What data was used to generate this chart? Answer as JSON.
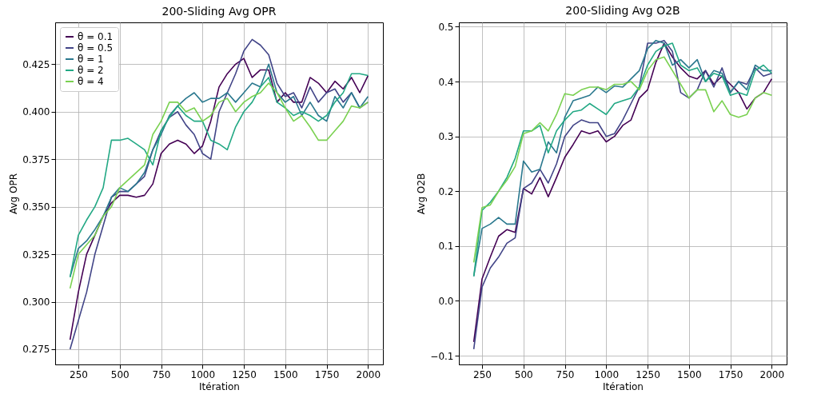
{
  "chart_data": [
    {
      "type": "line",
      "title": "200-Sliding Avg OPR",
      "xlabel": "Itération",
      "ylabel": "Avg OPR",
      "grid": true,
      "legend": "top left",
      "xlim": [
        110,
        2090
      ],
      "ylim": [
        0.267,
        0.447
      ],
      "xticks": [
        250,
        500,
        750,
        1000,
        1250,
        1500,
        1750,
        2000
      ],
      "yticks": [
        0.275,
        {
          "value": 0.3,
          "label": "0.300"
        },
        0.325,
        {
          "value": 0.35,
          "label": "0.350"
        },
        0.375,
        {
          "value": 0.4,
          "label": "0.400"
        },
        0.425
      ],
      "x": [
        200,
        250,
        300,
        350,
        400,
        450,
        500,
        550,
        600,
        650,
        700,
        750,
        800,
        850,
        900,
        950,
        1000,
        1050,
        1100,
        1150,
        1200,
        1250,
        1300,
        1350,
        1400,
        1450,
        1500,
        1550,
        1600,
        1650,
        1700,
        1750,
        1800,
        1850,
        1900,
        1950,
        2000
      ],
      "series": [
        {
          "name": "θ = 0.1",
          "color": "#440154",
          "values": [
            0.28,
            0.305,
            0.325,
            0.335,
            0.345,
            0.352,
            0.356,
            0.356,
            0.355,
            0.356,
            0.362,
            0.378,
            0.383,
            0.385,
            0.383,
            0.378,
            0.382,
            0.395,
            0.413,
            0.42,
            0.425,
            0.428,
            0.418,
            0.422,
            0.422,
            0.405,
            0.41,
            0.405,
            0.405,
            0.418,
            0.415,
            0.41,
            0.416,
            0.412,
            0.418,
            0.41,
            0.419
          ]
        },
        {
          "name": "θ = 0.5",
          "color": "#414487",
          "values": [
            0.275,
            0.29,
            0.305,
            0.325,
            0.34,
            0.355,
            0.358,
            0.358,
            0.362,
            0.366,
            0.38,
            0.39,
            0.397,
            0.4,
            0.393,
            0.388,
            0.378,
            0.375,
            0.4,
            0.41,
            0.42,
            0.432,
            0.438,
            0.435,
            0.43,
            0.415,
            0.408,
            0.41,
            0.402,
            0.413,
            0.405,
            0.41,
            0.412,
            0.405,
            0.41,
            0.402,
            0.405
          ]
        },
        {
          "name": "θ = 1",
          "color": "#2a788e",
          "values": [
            0.313,
            0.328,
            0.332,
            0.338,
            0.345,
            0.355,
            0.36,
            0.358,
            0.362,
            0.368,
            0.38,
            0.388,
            0.398,
            0.403,
            0.407,
            0.41,
            0.405,
            0.407,
            0.407,
            0.41,
            0.405,
            0.41,
            0.415,
            0.413,
            0.425,
            0.41,
            0.405,
            0.408,
            0.398,
            0.405,
            0.398,
            0.395,
            0.408,
            0.402,
            0.41,
            0.402,
            0.408
          ]
        },
        {
          "name": "θ = 2",
          "color": "#22a884",
          "values": [
            0.313,
            0.335,
            0.343,
            0.35,
            0.36,
            0.385,
            0.385,
            0.386,
            0.383,
            0.38,
            0.372,
            0.39,
            0.397,
            0.403,
            0.398,
            0.395,
            0.395,
            0.385,
            0.383,
            0.38,
            0.392,
            0.4,
            0.405,
            0.413,
            0.418,
            0.405,
            0.402,
            0.398,
            0.4,
            0.398,
            0.395,
            0.398,
            0.405,
            0.41,
            0.42,
            0.42,
            0.419
          ]
        },
        {
          "name": "θ = 4",
          "color": "#7ad151",
          "values": [
            0.307,
            0.325,
            0.33,
            0.335,
            0.345,
            0.35,
            0.36,
            0.364,
            0.368,
            0.372,
            0.388,
            0.395,
            0.405,
            0.405,
            0.4,
            0.402,
            0.395,
            0.398,
            0.405,
            0.407,
            0.4,
            0.405,
            0.408,
            0.41,
            0.415,
            0.41,
            0.402,
            0.395,
            0.398,
            0.392,
            0.385,
            0.385,
            0.39,
            0.395,
            0.403,
            0.402,
            0.405
          ]
        }
      ]
    },
    {
      "type": "line",
      "title": "200-Sliding Avg O2B",
      "xlabel": "Itération",
      "ylabel": "Avg O2B",
      "grid": true,
      "legend": "top left",
      "xlim": [
        110,
        2090
      ],
      "ylim": [
        -0.116,
        0.508
      ],
      "xticks": [
        250,
        500,
        750,
        1000,
        1250,
        1500,
        1750,
        2000
      ],
      "yticks": [
        {
          "value": -0.1,
          "label": "−0.1"
        },
        {
          "value": 0,
          "label": "0.0"
        },
        0.1,
        0.2,
        0.3,
        0.4,
        0.5
      ],
      "x": [
        200,
        250,
        300,
        350,
        400,
        450,
        500,
        550,
        600,
        650,
        700,
        750,
        800,
        850,
        900,
        950,
        1000,
        1050,
        1100,
        1150,
        1200,
        1250,
        1300,
        1350,
        1400,
        1450,
        1500,
        1550,
        1600,
        1650,
        1700,
        1750,
        1800,
        1850,
        1900,
        1950,
        2000
      ],
      "series": [
        {
          "name": "θ = 0.1",
          "color": "#440154",
          "values": [
            -0.075,
            0.04,
            0.08,
            0.118,
            0.13,
            0.125,
            0.205,
            0.195,
            0.225,
            0.19,
            0.225,
            0.262,
            0.285,
            0.31,
            0.305,
            0.31,
            0.29,
            0.3,
            0.32,
            0.33,
            0.37,
            0.385,
            0.435,
            0.47,
            0.445,
            0.425,
            0.41,
            0.405,
            0.42,
            0.395,
            0.41,
            0.395,
            0.38,
            0.35,
            0.37,
            0.38,
            0.405
          ]
        },
        {
          "name": "θ = 0.5",
          "color": "#414487",
          "values": [
            -0.088,
            0.025,
            0.06,
            0.08,
            0.105,
            0.115,
            0.205,
            0.215,
            0.24,
            0.215,
            0.25,
            0.3,
            0.32,
            0.33,
            0.325,
            0.325,
            0.3,
            0.305,
            0.33,
            0.36,
            0.39,
            0.47,
            0.47,
            0.475,
            0.455,
            0.38,
            0.37,
            0.385,
            0.42,
            0.39,
            0.425,
            0.38,
            0.4,
            0.395,
            0.425,
            0.41,
            0.415
          ]
        },
        {
          "name": "θ = 1",
          "color": "#2a788e",
          "values": [
            0.045,
            0.132,
            0.14,
            0.152,
            0.14,
            0.14,
            0.255,
            0.235,
            0.24,
            0.29,
            0.27,
            0.335,
            0.365,
            0.37,
            0.375,
            0.39,
            0.38,
            0.392,
            0.39,
            0.405,
            0.42,
            0.46,
            0.475,
            0.47,
            0.43,
            0.44,
            0.425,
            0.44,
            0.4,
            0.42,
            0.415,
            0.38,
            0.4,
            0.385,
            0.43,
            0.42,
            0.42
          ]
        },
        {
          "name": "θ = 2",
          "color": "#22a884",
          "values": [
            0.045,
            0.165,
            0.18,
            0.2,
            0.225,
            0.26,
            0.31,
            0.31,
            0.32,
            0.27,
            0.31,
            0.33,
            0.345,
            0.348,
            0.36,
            0.35,
            0.34,
            0.36,
            0.365,
            0.37,
            0.39,
            0.43,
            0.455,
            0.465,
            0.47,
            0.43,
            0.42,
            0.425,
            0.4,
            0.415,
            0.41,
            0.375,
            0.38,
            0.375,
            0.42,
            0.43,
            0.415
          ]
        },
        {
          "name": "θ = 4",
          "color": "#7ad151",
          "values": [
            0.07,
            0.17,
            0.175,
            0.2,
            0.22,
            0.245,
            0.305,
            0.31,
            0.325,
            0.31,
            0.34,
            0.378,
            0.375,
            0.385,
            0.39,
            0.39,
            0.385,
            0.395,
            0.395,
            0.4,
            0.385,
            0.42,
            0.44,
            0.445,
            0.42,
            0.395,
            0.37,
            0.385,
            0.385,
            0.345,
            0.365,
            0.34,
            0.335,
            0.34,
            0.37,
            0.38,
            0.375
          ]
        }
      ]
    }
  ]
}
